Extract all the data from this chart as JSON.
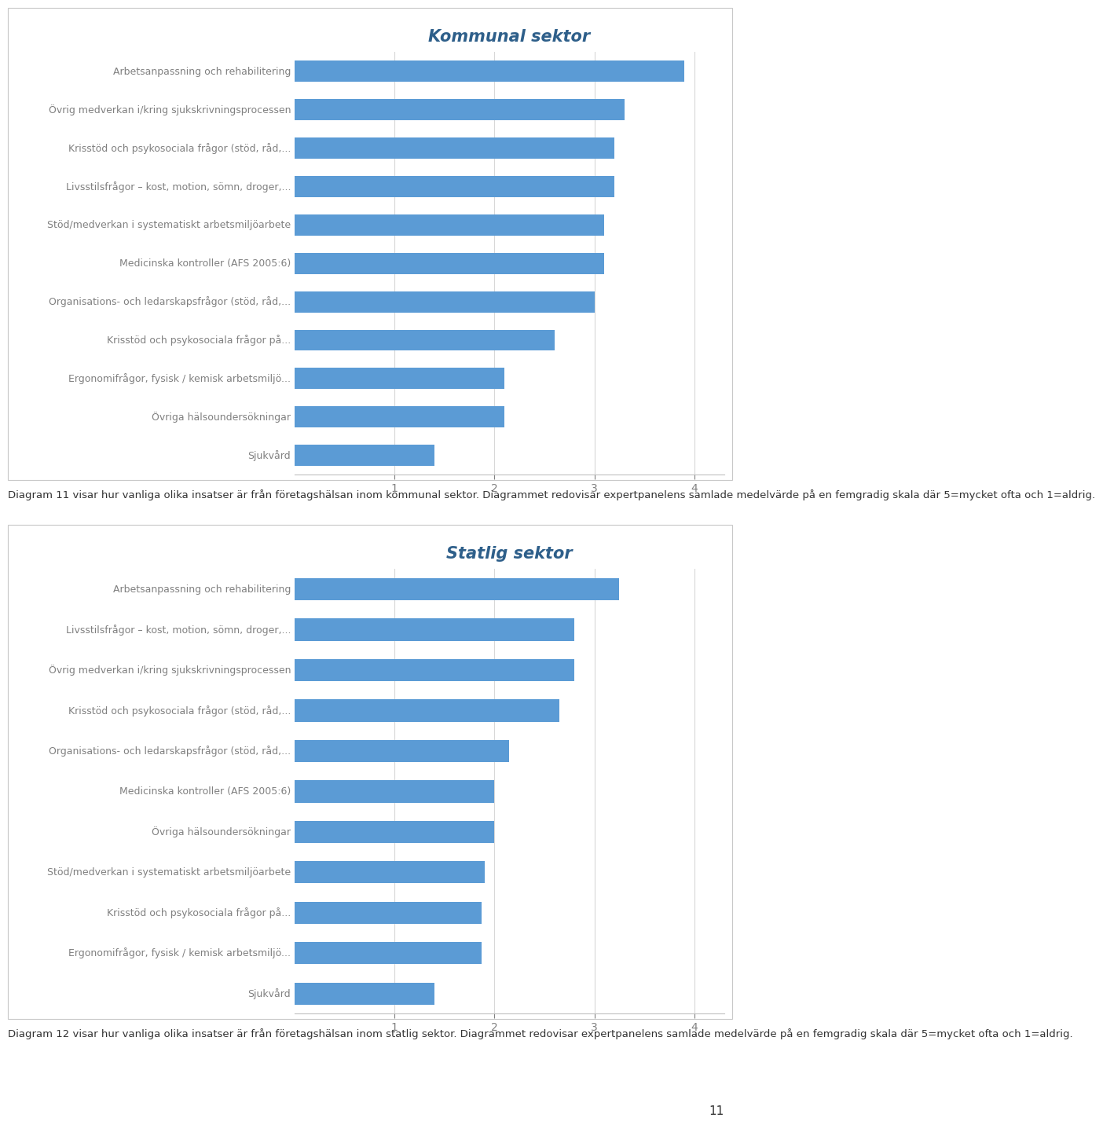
{
  "chart1": {
    "title": "Kommunal sektor",
    "categories": [
      "Arbetsanpassning och rehabilitering",
      "Övrig medverkan i/kring sjukskrivningsprocessen",
      "Krisstöd och psykosociala frågor (stöd, råd,...",
      "Livsstilsfrågor – kost, motion, sömn, droger,...",
      "Stöd/medverkan i systematiskt arbetsmiljöarbete",
      "Medicinska kontroller (AFS 2005:6)",
      "Organisations- och ledarskapsfrågor (stöd, råd,...",
      "Krisstöd och psykosociala frågor på...",
      "Ergonomifrågor, fysisk / kemisk arbetsmiljö...",
      "Övriga hälsoundersökningar",
      "Sjukvård"
    ],
    "values": [
      3.9,
      3.3,
      3.2,
      3.2,
      3.1,
      3.1,
      3.0,
      2.6,
      2.1,
      2.1,
      1.4
    ],
    "xlim": [
      0,
      4.3
    ],
    "xticks": [
      1,
      2,
      3,
      4
    ]
  },
  "chart2": {
    "title": "Statlig sektor",
    "categories": [
      "Arbetsanpassning och rehabilitering",
      "Livsstilsfrågor – kost, motion, sömn, droger,...",
      "Övrig medverkan i/kring sjukskrivningsprocessen",
      "Krisstöd och psykosociala frågor (stöd, råd,...",
      "Organisations- och ledarskapsfrågor (stöd, råd,...",
      "Medicinska kontroller (AFS 2005:6)",
      "Övriga hälsoundersökningar",
      "Stöd/medverkan i systematiskt arbetsmiljöarbete",
      "Krisstöd och psykosociala frågor på...",
      "Ergonomifrågor, fysisk / kemisk arbetsmiljö...",
      "Sjukvård"
    ],
    "values": [
      3.25,
      2.8,
      2.8,
      2.65,
      2.15,
      2.0,
      2.0,
      1.9,
      1.87,
      1.87,
      1.4
    ],
    "xlim": [
      0,
      4.3
    ],
    "xticks": [
      1,
      2,
      3,
      4
    ]
  },
  "caption1": "Diagram 11 visar hur vanliga olika insatser är från företagshälsan inom kommunal sektor. Diagrammet redovisar expertpanelens samlade medelvärde på en femgradig skala där 5=mycket ofta och 1=aldrig.",
  "caption2": "Diagram 12 visar hur vanliga olika insatser är från företagshälsan inom statlig sektor. Diagrammet redovisar expertpanelens samlade medelvärde på en femgradig skala där 5=mycket ofta och 1=aldrig.",
  "bar_color": "#5B9BD5",
  "title_color": "#2E5F8A",
  "label_color": "#808080",
  "tick_color": "#808080",
  "page_number": "11",
  "background_color": "#FFFFFF",
  "chart_border_color": "#C8C8C8"
}
